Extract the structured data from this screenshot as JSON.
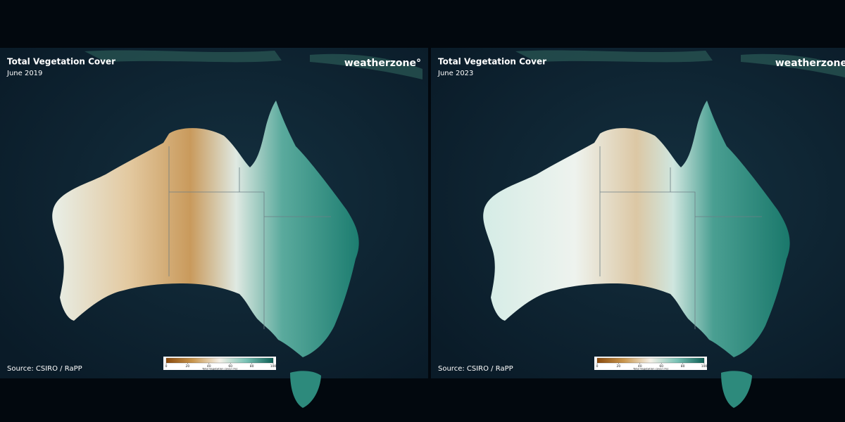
{
  "panels": [
    {
      "title": "Total Vegetation Cover",
      "subtitle": "June 2019",
      "brand": "weatherzone°",
      "source": "Source: CSIRO / RaPP",
      "legend": {
        "label": "Total Vegetation cover [%]",
        "range": [
          0,
          100
        ],
        "ticks": [
          0,
          20,
          40,
          60,
          80,
          100
        ]
      }
    },
    {
      "title": "Total Vegetation Cover",
      "subtitle": "June 2023",
      "brand": "weatherzone°",
      "source": "Source: CSIRO / RaPP",
      "legend": {
        "label": "Total Vegetation cover [%]",
        "range": [
          0,
          100
        ],
        "ticks": [
          0,
          20,
          40,
          60,
          80,
          100
        ]
      }
    }
  ]
}
